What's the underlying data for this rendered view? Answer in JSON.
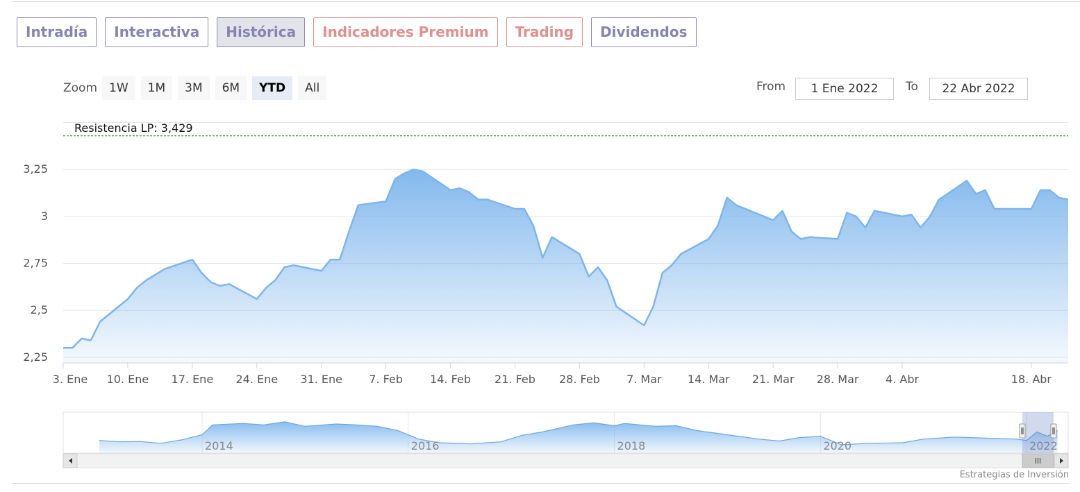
{
  "tabs": [
    {
      "label": "Intradía",
      "style": "normal"
    },
    {
      "label": "Interactiva",
      "style": "normal"
    },
    {
      "label": "Histórica",
      "style": "active"
    },
    {
      "label": "Indicadores Premium",
      "style": "red"
    },
    {
      "label": "Trading",
      "style": "red"
    },
    {
      "label": "Dividendos",
      "style": "normal"
    }
  ],
  "range_selector": {
    "zoom_label": "Zoom",
    "buttons": [
      "1W",
      "1M",
      "3M",
      "6M",
      "YTD",
      "All"
    ],
    "active": "YTD",
    "from_label": "From",
    "from_value": "1 Ene 2022",
    "to_label": "To",
    "to_value": "22 Abr 2022"
  },
  "chart_data": {
    "type": "area",
    "title": "",
    "xlabel": "",
    "ylabel": "",
    "ylim": [
      2.22,
      3.55
    ],
    "xlim": [
      "2022-01-03",
      "2022-04-22"
    ],
    "grid": true,
    "y_ticks": [
      {
        "value": 2.25,
        "label": "2,25"
      },
      {
        "value": 2.5,
        "label": "2,5"
      },
      {
        "value": 2.75,
        "label": "2,75"
      },
      {
        "value": 3,
        "label": "3"
      },
      {
        "value": 3.25,
        "label": "3,25"
      }
    ],
    "x_ticks": [
      {
        "date": "2022-01-03",
        "label": "3. Ene"
      },
      {
        "date": "2022-01-10",
        "label": "10. Ene"
      },
      {
        "date": "2022-01-17",
        "label": "17. Ene"
      },
      {
        "date": "2022-01-24",
        "label": "24. Ene"
      },
      {
        "date": "2022-01-31",
        "label": "31. Ene"
      },
      {
        "date": "2022-02-07",
        "label": "7. Feb"
      },
      {
        "date": "2022-02-14",
        "label": "14. Feb"
      },
      {
        "date": "2022-02-21",
        "label": "21. Feb"
      },
      {
        "date": "2022-02-28",
        "label": "28. Feb"
      },
      {
        "date": "2022-03-07",
        "label": "7. Mar"
      },
      {
        "date": "2022-03-14",
        "label": "14. Mar"
      },
      {
        "date": "2022-03-21",
        "label": "21. Mar"
      },
      {
        "date": "2022-03-28",
        "label": "28. Mar"
      },
      {
        "date": "2022-04-04",
        "label": "4. Abr"
      },
      {
        "date": "2022-04-18",
        "label": "18. Abr"
      }
    ],
    "plot_line": {
      "value": 3.429,
      "label": "Resistencia LP: 3,429",
      "color": "#1a7a1a"
    },
    "series": [
      {
        "color": "#7cb5ec",
        "points": [
          [
            "2022-01-03",
            2.3
          ],
          [
            "2022-01-04",
            2.3
          ],
          [
            "2022-01-05",
            2.35
          ],
          [
            "2022-01-06",
            2.34
          ],
          [
            "2022-01-07",
            2.44
          ],
          [
            "2022-01-10",
            2.56
          ],
          [
            "2022-01-11",
            2.62
          ],
          [
            "2022-01-12",
            2.66
          ],
          [
            "2022-01-13",
            2.69
          ],
          [
            "2022-01-14",
            2.72
          ],
          [
            "2022-01-17",
            2.77
          ],
          [
            "2022-01-18",
            2.7
          ],
          [
            "2022-01-19",
            2.65
          ],
          [
            "2022-01-20",
            2.63
          ],
          [
            "2022-01-21",
            2.64
          ],
          [
            "2022-01-24",
            2.56
          ],
          [
            "2022-01-25",
            2.62
          ],
          [
            "2022-01-26",
            2.66
          ],
          [
            "2022-01-27",
            2.73
          ],
          [
            "2022-01-28",
            2.74
          ],
          [
            "2022-01-31",
            2.71
          ],
          [
            "2022-02-01",
            2.77
          ],
          [
            "2022-02-02",
            2.77
          ],
          [
            "2022-02-03",
            2.92
          ],
          [
            "2022-02-04",
            3.06
          ],
          [
            "2022-02-07",
            3.08
          ],
          [
            "2022-02-08",
            3.2
          ],
          [
            "2022-02-09",
            3.23
          ],
          [
            "2022-02-10",
            3.25
          ],
          [
            "2022-02-11",
            3.24
          ],
          [
            "2022-02-14",
            3.14
          ],
          [
            "2022-02-15",
            3.15
          ],
          [
            "2022-02-16",
            3.13
          ],
          [
            "2022-02-17",
            3.09
          ],
          [
            "2022-02-18",
            3.09
          ],
          [
            "2022-02-21",
            3.04
          ],
          [
            "2022-02-22",
            3.04
          ],
          [
            "2022-02-23",
            2.95
          ],
          [
            "2022-02-24",
            2.78
          ],
          [
            "2022-02-25",
            2.89
          ],
          [
            "2022-02-28",
            2.8
          ],
          [
            "2022-03-01",
            2.68
          ],
          [
            "2022-03-02",
            2.73
          ],
          [
            "2022-03-03",
            2.66
          ],
          [
            "2022-03-04",
            2.52
          ],
          [
            "2022-03-07",
            2.42
          ],
          [
            "2022-03-08",
            2.52
          ],
          [
            "2022-03-09",
            2.7
          ],
          [
            "2022-03-10",
            2.74
          ],
          [
            "2022-03-11",
            2.8
          ],
          [
            "2022-03-14",
            2.88
          ],
          [
            "2022-03-15",
            2.95
          ],
          [
            "2022-03-16",
            3.1
          ],
          [
            "2022-03-17",
            3.06
          ],
          [
            "2022-03-18",
            3.04
          ],
          [
            "2022-03-21",
            2.98
          ],
          [
            "2022-03-22",
            3.03
          ],
          [
            "2022-03-23",
            2.92
          ],
          [
            "2022-03-24",
            2.88
          ],
          [
            "2022-03-25",
            2.89
          ],
          [
            "2022-03-28",
            2.88
          ],
          [
            "2022-03-29",
            3.02
          ],
          [
            "2022-03-30",
            3.0
          ],
          [
            "2022-03-31",
            2.94
          ],
          [
            "2022-04-01",
            3.03
          ],
          [
            "2022-04-04",
            3.0
          ],
          [
            "2022-04-05",
            3.01
          ],
          [
            "2022-04-06",
            2.94
          ],
          [
            "2022-04-07",
            3.0
          ],
          [
            "2022-04-08",
            3.09
          ],
          [
            "2022-04-11",
            3.19
          ],
          [
            "2022-04-12",
            3.12
          ],
          [
            "2022-04-13",
            3.14
          ],
          [
            "2022-04-14",
            3.04
          ],
          [
            "2022-04-18",
            3.04
          ],
          [
            "2022-04-19",
            3.14
          ],
          [
            "2022-04-20",
            3.14
          ],
          [
            "2022-04-21",
            3.1
          ],
          [
            "2022-04-22",
            3.09
          ]
        ]
      }
    ],
    "navigator": {
      "x_labels": [
        "2014",
        "2016",
        "2018",
        "2020",
        "2022"
      ],
      "series": [
        [
          2013.0,
          2.7
        ],
        [
          2013.2,
          2.65
        ],
        [
          2013.4,
          2.66
        ],
        [
          2013.6,
          2.6
        ],
        [
          2013.8,
          2.72
        ],
        [
          2014.0,
          2.9
        ],
        [
          2014.1,
          3.25
        ],
        [
          2014.4,
          3.3
        ],
        [
          2014.6,
          3.25
        ],
        [
          2014.8,
          3.36
        ],
        [
          2015.0,
          3.2
        ],
        [
          2015.3,
          3.28
        ],
        [
          2015.5,
          3.25
        ],
        [
          2015.7,
          3.2
        ],
        [
          2015.9,
          3.05
        ],
        [
          2016.1,
          2.75
        ],
        [
          2016.3,
          2.62
        ],
        [
          2016.6,
          2.58
        ],
        [
          2016.9,
          2.65
        ],
        [
          2017.1,
          2.88
        ],
        [
          2017.3,
          3.0
        ],
        [
          2017.6,
          3.25
        ],
        [
          2017.8,
          3.32
        ],
        [
          2018.0,
          3.22
        ],
        [
          2018.1,
          3.3
        ],
        [
          2018.4,
          3.2
        ],
        [
          2018.6,
          3.22
        ],
        [
          2018.8,
          3.05
        ],
        [
          2019.0,
          2.95
        ],
        [
          2019.2,
          2.85
        ],
        [
          2019.4,
          2.75
        ],
        [
          2019.6,
          2.68
        ],
        [
          2019.8,
          2.8
        ],
        [
          2020.0,
          2.85
        ],
        [
          2020.2,
          2.55
        ],
        [
          2020.5,
          2.6
        ],
        [
          2020.8,
          2.62
        ],
        [
          2021.0,
          2.75
        ],
        [
          2021.3,
          2.82
        ],
        [
          2021.6,
          2.78
        ],
        [
          2021.9,
          2.75
        ],
        [
          2022.0,
          2.7
        ],
        [
          2022.1,
          3.0
        ],
        [
          2022.2,
          2.85
        ],
        [
          2022.3,
          3.05
        ]
      ]
    }
  },
  "credits": "Estrategias de Inversión"
}
